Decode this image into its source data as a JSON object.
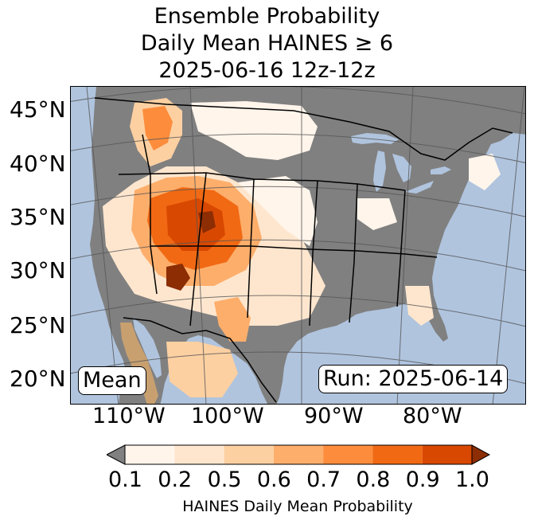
{
  "title": {
    "line1": "Ensemble Probability",
    "line2": "Daily Mean HAINES ≥ 6",
    "line3": "2025-06-16 12z-12z"
  },
  "map": {
    "projection": "lambert-conformal",
    "ocean_color": "#b0c4de",
    "land_low_color": "#808080",
    "border_color": "#000000",
    "graticule_color": "#555555",
    "lat_labels": [
      "45°N",
      "40°N",
      "35°N",
      "30°N",
      "25°N",
      "20°N"
    ],
    "lon_labels": [
      "110°W",
      "100°W",
      "90°W",
      "80°W"
    ]
  },
  "labels": {
    "mean": "Mean",
    "run": "Run: 2025-06-14"
  },
  "colorbar": {
    "label": "HAINES Daily Mean Probability",
    "ticks": [
      "0.1",
      "0.2",
      "0.5",
      "0.6",
      "0.7",
      "0.8",
      "0.9",
      "1.0"
    ],
    "under_color": "#808080",
    "colors": [
      "#fff5eb",
      "#fee6ce",
      "#fdd0a2",
      "#fdae6b",
      "#fd8d3c",
      "#f16913",
      "#d94801"
    ],
    "over_color": "#8c2d04",
    "extend": "both"
  }
}
